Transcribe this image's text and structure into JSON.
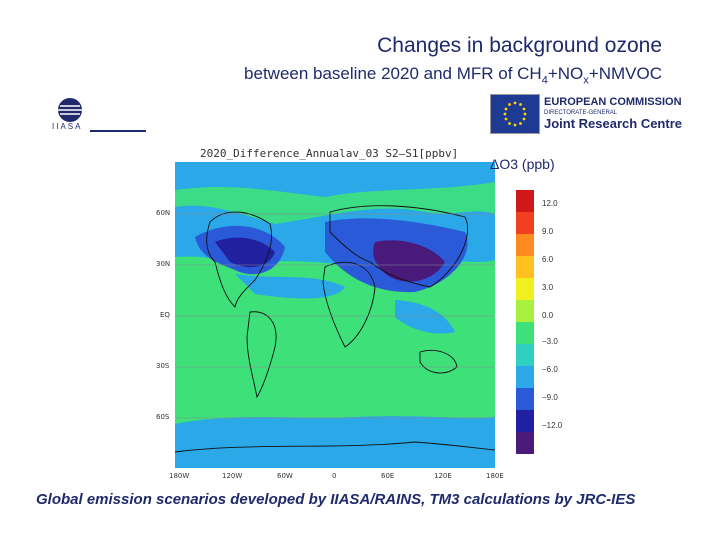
{
  "title": "Changes in background ozone",
  "subtitle": {
    "before": "between baseline 2020 and MFR of CH",
    "sub1": "4",
    "middle": "+NO",
    "sub2": "x",
    "after": "+NMVOC"
  },
  "logos": {
    "iiasa": "IIASA",
    "ec_line1": "EUROPEAN COMMISSION",
    "ec_line2": "DIRECTORATE-GENERAL",
    "ec_line3": "Joint Research Centre"
  },
  "plot": {
    "title": "2020_Difference_Annualav_03   S2–S1[ppbv]",
    "lat_ticks": [
      "60N",
      "30N",
      "EQ",
      "30S",
      "60S"
    ],
    "lon_ticks": [
      "180W",
      "120W",
      "60W",
      "0",
      "60E",
      "120E",
      "180E"
    ]
  },
  "colorbar": {
    "label": "ΔO3 (ppb)",
    "ticks": [
      "12.0",
      "9.0",
      "6.0",
      "3.0",
      "0.0",
      "−3.0",
      "−6.0",
      "−9.0",
      "−12.0"
    ]
  },
  "colors": {
    "text": "#1f2a6b",
    "ocean_green": "#3ee07a",
    "light_blue": "#2aa8e8",
    "mid_blue": "#2a5ad8",
    "dark_blue": "#2020a0",
    "purple": "#4a1a7a"
  },
  "footer": "Global emission scenarios developed by IIASA/RAINS, TM3 calculations by JRC-IES"
}
